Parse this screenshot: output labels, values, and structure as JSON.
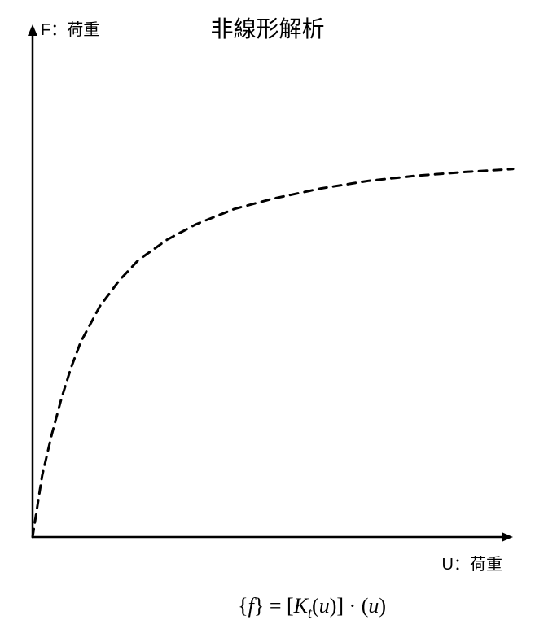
{
  "chart": {
    "type": "line",
    "title": "非線形解析",
    "title_fontsize": 28,
    "y_axis_label": "F：荷重",
    "x_axis_label": "U：荷重",
    "label_fontsize": 20,
    "background_color": "#ffffff",
    "axis_color": "#000000",
    "axis_width": 2.5,
    "curve": {
      "stroke_color": "#000000",
      "stroke_width": 3,
      "dash_pattern": "10 8",
      "xlim": [
        0,
        100
      ],
      "ylim": [
        0,
        100
      ],
      "points": [
        [
          0,
          0
        ],
        [
          2,
          12
        ],
        [
          4,
          20
        ],
        [
          6,
          27
        ],
        [
          8,
          33
        ],
        [
          10,
          38
        ],
        [
          14,
          45
        ],
        [
          18,
          50
        ],
        [
          22,
          54
        ],
        [
          28,
          58
        ],
        [
          34,
          61
        ],
        [
          42,
          64
        ],
        [
          50,
          66
        ],
        [
          60,
          68
        ],
        [
          70,
          69.5
        ],
        [
          80,
          70.5
        ],
        [
          90,
          71.2
        ],
        [
          100,
          71.8
        ]
      ]
    },
    "arrowheads": {
      "x": true,
      "y": true,
      "size": 10
    }
  },
  "equation": {
    "tokens": {
      "lbrace": "{",
      "f": "f",
      "rbrace": "}",
      "eq": " = ",
      "lbracket": "[",
      "K": "K",
      "sub_t": "t",
      "lparen1": "(",
      "u1": "u",
      "rparen1": ")",
      "rbracket": "]",
      "dot": " · ",
      "lparen2": "(",
      "u2": "u",
      "rparen2": ")"
    },
    "fontsize": 26,
    "color": "#000000"
  }
}
